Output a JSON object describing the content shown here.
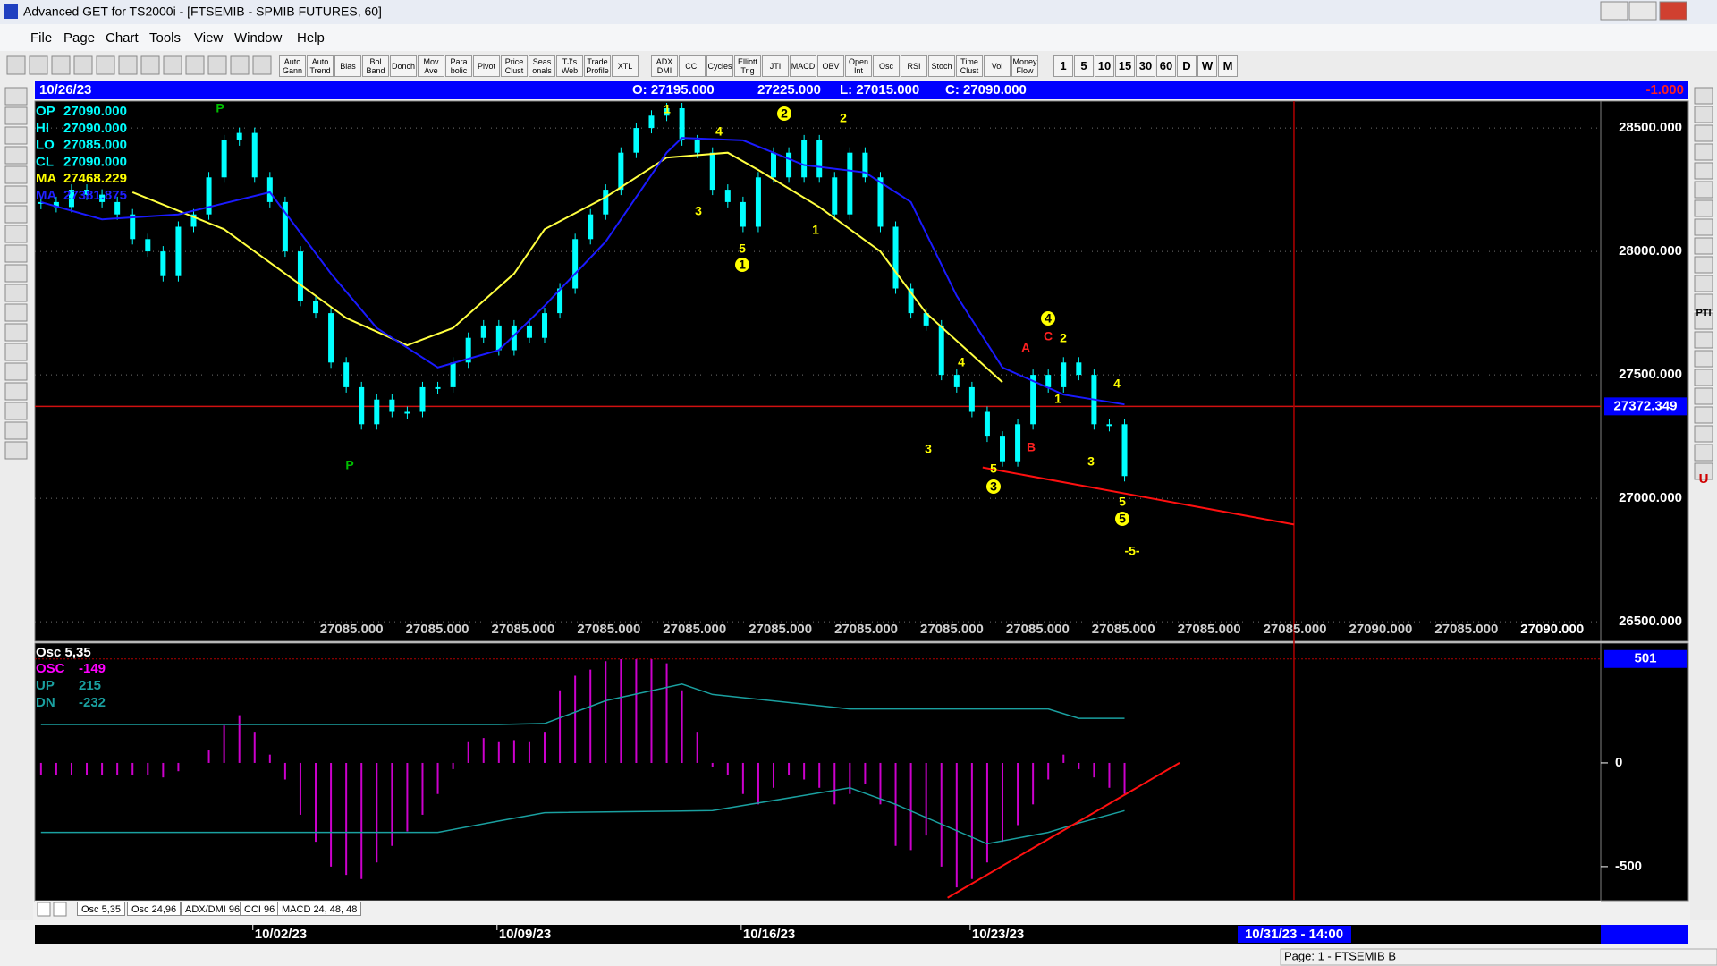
{
  "window": {
    "title": "Advanced GET for TS2000i - [FTSEMIB - SPMIB FUTURES, 60]"
  },
  "menu": [
    "File",
    "Page",
    "Chart",
    "Tools",
    "View",
    "Window",
    "Help"
  ],
  "toolbar": [
    "Auto Gann",
    "Auto Trend",
    "Bias",
    "Bol Band",
    "Donch",
    "Mov Ave",
    "Para bolic",
    "Pivot",
    "Price Clust",
    "Seas onals",
    "TJ's Web",
    "Trade Profile",
    "XTL",
    "ADX DMI",
    "CCI",
    "Cycles",
    "Elliott Trig",
    "JTI",
    "MACD",
    "OBV",
    "Open Int",
    "Osc",
    "RSI",
    "Stoch",
    "Time Clust",
    "Vol",
    "Money Flow"
  ],
  "intervals": [
    "1",
    "5",
    "10",
    "15",
    "30",
    "60",
    "D",
    "W",
    "M"
  ],
  "right_tools": [
    "PTI",
    "U"
  ],
  "info_bar": {
    "date": "10/26/23",
    "open": "O: 27195.000",
    "high": "27225.000",
    "low": "L: 27015.000",
    "close": "C: 27090.000",
    "change": "-1.000"
  },
  "chart_data": [
    {
      "type": "candlestick",
      "color": "#00ffff",
      "grid": true,
      "xlim": [
        -0.4,
        102.2
      ],
      "ylim": [
        26428,
        28609
      ],
      "yticks": [
        {
          "value": 26500,
          "label": "26500.000"
        },
        {
          "value": 27000,
          "label": "27000.000"
        },
        {
          "value": 27500,
          "label": "27500.000"
        },
        {
          "value": 28000,
          "label": "28000.000"
        },
        {
          "value": 28500,
          "label": "28500.000"
        }
      ],
      "xticks": [
        {
          "value": 14,
          "label": "10/02/23"
        },
        {
          "value": 30,
          "label": "10/09/23"
        },
        {
          "value": 46,
          "label": "10/16/23"
        },
        {
          "value": 61,
          "label": "10/23/23"
        }
      ],
      "values": [
        28200,
        28180,
        28250,
        28230,
        28200,
        28150,
        28050,
        28000,
        27900,
        28100,
        28150,
        28300,
        28450,
        28480,
        28300,
        28200,
        28000,
        27800,
        27750,
        27550,
        27450,
        27300,
        27400,
        27350,
        27350,
        27450,
        27450,
        27550,
        27650,
        27700,
        27600,
        27700,
        27650,
        27750,
        27850,
        28050,
        28150,
        28250,
        28400,
        28500,
        28550,
        28580,
        28450,
        28400,
        28250,
        28200,
        28100,
        28300,
        28400,
        28300,
        28450,
        28300,
        28150,
        28400,
        28300,
        28100,
        27850,
        27750,
        27700,
        27500,
        27450,
        27350,
        27250,
        27150,
        27300,
        27500,
        27450,
        27550,
        27500,
        27300,
        27300,
        27090
      ],
      "readout": [
        {
          "label": "OP",
          "value": "27090.000",
          "color": "#00ffff"
        },
        {
          "label": "HI",
          "value": "27090.000",
          "color": "#00ffff"
        },
        {
          "label": "LO",
          "value": "27085.000",
          "color": "#00ffff"
        },
        {
          "label": "CL",
          "value": "27090.000",
          "color": "#00ffff"
        },
        {
          "label": "MA",
          "value": "27468.229",
          "color": "#ffff00"
        },
        {
          "label": "MA",
          "value": "27381.875",
          "color": "#2020ff"
        }
      ],
      "moving_averages": [
        {
          "color": "#ffff40",
          "x": [
            6,
            12,
            16,
            20,
            24,
            27,
            31,
            33,
            37,
            41,
            45,
            47,
            51,
            55,
            58,
            63
          ],
          "values": [
            28240,
            28090,
            27910,
            27730,
            27620,
            27690,
            27910,
            28090,
            28220,
            28380,
            28400,
            28330,
            28180,
            28000,
            27750,
            27470
          ]
        },
        {
          "color": "#1a1aff",
          "x": [
            0,
            4,
            9,
            15,
            19,
            22,
            26,
            30,
            33,
            37,
            41,
            42,
            46,
            50,
            54,
            57,
            60,
            63,
            67,
            71
          ],
          "values": [
            28200,
            28130,
            28150,
            28240,
            27910,
            27690,
            27530,
            27600,
            27780,
            28040,
            28400,
            28460,
            28450,
            28350,
            28320,
            28200,
            27820,
            27530,
            27420,
            27380
          ]
        }
      ],
      "annotations": [
        "P",
        "P",
        "1",
        "4",
        "3",
        "5",
        "1",
        "2",
        "2",
        "1",
        "4",
        "3",
        "5",
        "3",
        "4",
        "C",
        "2",
        "A",
        "B",
        "1",
        "4",
        "3",
        "5",
        "5",
        "-5-"
      ],
      "bottom_labels": [
        "27085.000",
        "27085.000",
        "27085.000",
        "27085.000",
        "27085.000",
        "27085.000",
        "27085.000",
        "27085.000",
        "27085.000",
        "27085.000",
        "27085.000",
        "27085.000",
        "27090.000",
        "27085.000",
        "27090.000"
      ],
      "cursor_price": {
        "value": 27372.349,
        "label": "27372.349"
      },
      "cursor_x": 82.1,
      "trendline": {
        "color": "#ff1010",
        "x": [
          61.7,
          82.1
        ],
        "values": [
          27125,
          26894
        ]
      }
    },
    {
      "type": "bar",
      "title": "Osc 5,35",
      "color": "#cc00cc",
      "xlim": [
        -0.4,
        102.2
      ],
      "ylim": [
        -660,
        556
      ],
      "yticks": [
        0,
        -500
      ],
      "cursor_value": 501,
      "legend": [
        {
          "label": "OSC",
          "value": -149,
          "color": "#ff00ff"
        },
        {
          "label": "UP",
          "value": 215,
          "color": "#1aa0a0"
        },
        {
          "label": "DN",
          "value": -232,
          "color": "#1aa0a0"
        }
      ],
      "values": [
        -60,
        -60,
        -60,
        -60,
        -60,
        -60,
        -60,
        -60,
        -70,
        -40,
        0,
        60,
        180,
        230,
        150,
        40,
        -80,
        -250,
        -380,
        -500,
        -540,
        -560,
        -480,
        -400,
        -330,
        -250,
        -150,
        -30,
        100,
        120,
        100,
        110,
        100,
        150,
        350,
        420,
        450,
        490,
        500,
        500,
        500,
        480,
        350,
        150,
        -20,
        -60,
        -150,
        -200,
        -120,
        -60,
        -80,
        -120,
        -200,
        -150,
        -100,
        -200,
        -400,
        -420,
        -350,
        -500,
        -600,
        -560,
        -480,
        -380,
        -300,
        -200,
        -80,
        40,
        -30,
        -70,
        -120,
        -149
      ],
      "series": [
        {
          "name": "UP",
          "color": "#1aa0a0",
          "x": [
            0,
            19,
            30,
            33,
            37,
            42,
            44,
            53,
            66,
            68,
            71
          ],
          "values": [
            185,
            185,
            185,
            190,
            300,
            380,
            330,
            260,
            260,
            215,
            215
          ]
        },
        {
          "name": "DN",
          "color": "#1aa0a0",
          "x": [
            0,
            18,
            26,
            30,
            33,
            44,
            53,
            56,
            62,
            66,
            68,
            71
          ],
          "values": [
            -335,
            -335,
            -335,
            -280,
            -240,
            -230,
            -120,
            -200,
            -390,
            -335,
            -290,
            -230
          ]
        }
      ],
      "trendline": {
        "color": "#ff1010",
        "x": [
          59.4,
          74.6
        ],
        "values": [
          -650,
          0
        ]
      }
    }
  ],
  "tabs": [
    "Osc 5,35",
    "Osc 24,96",
    "ADX/DMI 96",
    "CCI 96",
    "MACD 24, 48, 48"
  ],
  "cursor_date": "10/31/23 - 14:00",
  "status": "Page: 1 - FTSEMIB B"
}
